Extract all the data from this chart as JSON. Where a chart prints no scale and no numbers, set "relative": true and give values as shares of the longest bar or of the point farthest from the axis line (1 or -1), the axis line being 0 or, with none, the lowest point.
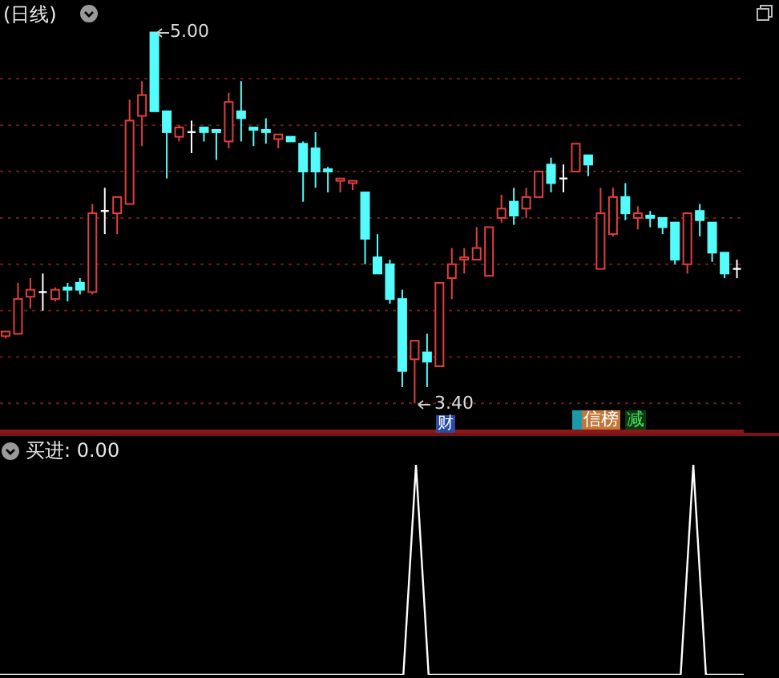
{
  "chart_data": [
    {
      "type": "candlestick",
      "title": "(日线)",
      "categories": [
        null,
        null,
        null,
        null,
        null,
        null,
        null,
        null,
        null,
        null,
        null,
        null,
        null,
        null,
        null,
        null,
        null,
        null,
        null,
        null,
        null,
        null,
        null,
        null,
        null,
        null,
        null,
        null,
        null,
        null,
        null,
        null,
        null,
        null,
        null,
        null,
        null,
        null,
        null,
        null,
        null,
        null,
        null,
        null,
        null,
        null,
        null,
        null,
        null,
        null,
        null,
        null,
        null,
        null,
        null,
        null,
        null,
        null,
        null,
        null
      ],
      "ohlc": [
        [
          3.69,
          3.71,
          3.68,
          3.71
        ],
        [
          3.7,
          3.92,
          3.7,
          3.85
        ],
        [
          3.86,
          3.94,
          3.81,
          3.89
        ],
        [
          3.88,
          3.96,
          3.8,
          3.88
        ],
        [
          3.85,
          3.9,
          3.84,
          3.89
        ],
        [
          3.9,
          3.92,
          3.84,
          3.89
        ],
        [
          3.92,
          3.94,
          3.87,
          3.89
        ],
        [
          3.88,
          4.26,
          3.87,
          4.22
        ],
        [
          4.23,
          4.33,
          4.13,
          4.23
        ],
        [
          4.22,
          4.29,
          4.13,
          4.29
        ],
        [
          4.26,
          4.71,
          4.26,
          4.62
        ],
        [
          4.64,
          4.79,
          4.51,
          4.73
        ],
        [
          5.0,
          5.0,
          4.66,
          4.66
        ],
        [
          4.66,
          4.66,
          4.37,
          4.57
        ],
        [
          4.55,
          4.6,
          4.53,
          4.59
        ],
        [
          4.57,
          4.62,
          4.48,
          4.57
        ],
        [
          4.59,
          4.59,
          4.53,
          4.57
        ],
        [
          4.58,
          4.58,
          4.45,
          4.57
        ],
        [
          4.53,
          4.74,
          4.5,
          4.7
        ],
        [
          4.66,
          4.79,
          4.53,
          4.63
        ],
        [
          4.59,
          4.59,
          4.51,
          4.58
        ],
        [
          4.58,
          4.63,
          4.52,
          4.57
        ],
        [
          4.54,
          4.56,
          4.5,
          4.56
        ],
        [
          4.55,
          4.55,
          4.53,
          4.53
        ],
        [
          4.52,
          4.53,
          4.27,
          4.4
        ],
        [
          4.5,
          4.57,
          4.33,
          4.4
        ],
        [
          4.41,
          4.42,
          4.31,
          4.4
        ],
        [
          4.36,
          4.37,
          4.31,
          4.37
        ],
        [
          4.35,
          4.36,
          4.32,
          4.36
        ],
        [
          4.31,
          4.31,
          4.0,
          4.11
        ],
        [
          4.03,
          4.13,
          3.96,
          3.96
        ],
        [
          4.0,
          4.02,
          3.83,
          3.85
        ],
        [
          3.85,
          3.89,
          3.47,
          3.54
        ],
        [
          3.59,
          3.67,
          3.4,
          3.67
        ],
        [
          3.62,
          3.7,
          3.47,
          3.58
        ],
        [
          3.56,
          3.92,
          3.56,
          3.92
        ],
        [
          3.94,
          4.07,
          3.85,
          4.0
        ],
        [
          4.02,
          4.07,
          3.96,
          4.03
        ],
        [
          4.02,
          4.16,
          4.02,
          4.07
        ],
        [
          3.95,
          4.16,
          3.95,
          4.16
        ],
        [
          4.2,
          4.3,
          4.18,
          4.24
        ],
        [
          4.27,
          4.33,
          4.17,
          4.21
        ],
        [
          4.24,
          4.33,
          4.2,
          4.29
        ],
        [
          4.29,
          4.4,
          4.29,
          4.4
        ],
        [
          4.43,
          4.46,
          4.31,
          4.35
        ],
        [
          4.37,
          4.43,
          4.31,
          4.37
        ],
        [
          4.4,
          4.52,
          4.4,
          4.52
        ],
        [
          4.47,
          4.47,
          4.38,
          4.43
        ],
        [
          3.98,
          4.33,
          3.98,
          4.22
        ],
        [
          4.13,
          4.33,
          4.12,
          4.29
        ],
        [
          4.29,
          4.35,
          4.19,
          4.22
        ],
        [
          4.2,
          4.25,
          4.15,
          4.22
        ],
        [
          4.21,
          4.23,
          4.16,
          4.2
        ],
        [
          4.2,
          4.2,
          4.13,
          4.16
        ],
        [
          4.18,
          4.18,
          4.0,
          4.02
        ],
        [
          4.0,
          4.22,
          3.96,
          4.22
        ],
        [
          4.23,
          4.26,
          4.12,
          4.19
        ],
        [
          4.18,
          4.18,
          4.01,
          4.05
        ],
        [
          4.05,
          4.05,
          3.94,
          3.96
        ],
        [
          3.98,
          4.02,
          3.94,
          3.98
        ]
      ],
      "colors": [
        "#e0403c",
        "#e0403c",
        "#e0403c",
        "#ffffff",
        "#e0403c",
        "#54fcfc",
        "#54fcfc",
        "#e0403c",
        "#ffffff",
        "#e0403c",
        "#e0403c",
        "#e0403c",
        "#54fcfc",
        "#54fcfc",
        "#e0403c",
        "#ffffff",
        "#54fcfc",
        "#54fcfc",
        "#e0403c",
        "#54fcfc",
        "#54fcfc",
        "#54fcfc",
        "#e0403c",
        "#54fcfc",
        "#54fcfc",
        "#54fcfc",
        "#54fcfc",
        "#e0403c",
        "#e0403c",
        "#54fcfc",
        "#54fcfc",
        "#54fcfc",
        "#54fcfc",
        "#e0403c",
        "#54fcfc",
        "#e0403c",
        "#e0403c",
        "#e0403c",
        "#e0403c",
        "#e0403c",
        "#e0403c",
        "#54fcfc",
        "#e0403c",
        "#e0403c",
        "#54fcfc",
        "#ffffff",
        "#e0403c",
        "#54fcfc",
        "#e0403c",
        "#e0403c",
        "#54fcfc",
        "#e0403c",
        "#54fcfc",
        "#54fcfc",
        "#54fcfc",
        "#e0403c",
        "#54fcfc",
        "#54fcfc",
        "#54fcfc",
        "#ffffff"
      ],
      "ylim": [
        3.28,
        5.14
      ],
      "yticks": [
        {
          "value": 4.8,
          "label": null
        },
        {
          "value": 4.6,
          "label": null
        },
        {
          "value": 4.4,
          "label": null
        },
        {
          "value": 4.2,
          "label": null
        },
        {
          "value": 4.0,
          "label": null
        },
        {
          "value": 3.8,
          "label": null
        },
        {
          "value": 3.6,
          "label": null
        },
        {
          "value": 3.4,
          "label": null
        }
      ],
      "grid": "y",
      "annotations": [
        "5.00",
        "3.40",
        "财",
        "信榜",
        "减"
      ]
    },
    {
      "type": "line",
      "title": "买进: 0.00",
      "categories": [
        null,
        null,
        null,
        null,
        null,
        null,
        null,
        null,
        null,
        null,
        null,
        null,
        null,
        null,
        null,
        null,
        null,
        null,
        null,
        null,
        null,
        null,
        null,
        null,
        null,
        null,
        null,
        null,
        null,
        null,
        null,
        null,
        null,
        null,
        null,
        null,
        null,
        null,
        null,
        null,
        null,
        null,
        null,
        null,
        null,
        null,
        null,
        null,
        null,
        null,
        null,
        null,
        null,
        null,
        null,
        null,
        null,
        null,
        null,
        null
      ],
      "series": [
        {
          "color": "#ffffff",
          "values": [
            0,
            0,
            0,
            0,
            0,
            0,
            0,
            0,
            0,
            0,
            0,
            0,
            0,
            0,
            0,
            0,
            0,
            0,
            0,
            0,
            0,
            0,
            0,
            0,
            0,
            0,
            0,
            0,
            0,
            0,
            0,
            0,
            0,
            1,
            0,
            0,
            0,
            0,
            0,
            0,
            0,
            0,
            0,
            0,
            0,
            0,
            0,
            0,
            0,
            0,
            0,
            0,
            0,
            0,
            0,
            1,
            0,
            0,
            0,
            0
          ]
        }
      ],
      "relative": true,
      "marker": "none"
    }
  ]
}
